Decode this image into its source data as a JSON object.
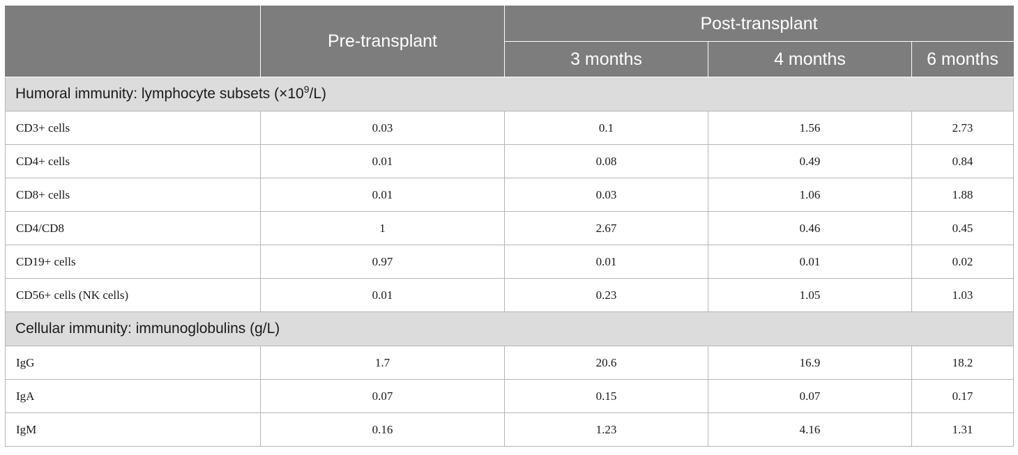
{
  "header": {
    "pre_transplant": "Pre-transplant",
    "post_transplant": "Post-transplant",
    "months": [
      "3 months",
      "4 months",
      "6 months"
    ]
  },
  "sections": [
    {
      "title_prefix": "Humoral immunity: lymphocyte subsets (×10",
      "title_superscript": "9",
      "title_suffix": "/L)",
      "rows": [
        {
          "label": "CD3+ cells",
          "values": [
            "0.03",
            "0.1",
            "1.56",
            "2.73"
          ]
        },
        {
          "label": "CD4+ cells",
          "values": [
            "0.01",
            "0.08",
            "0.49",
            "0.84"
          ]
        },
        {
          "label": "CD8+ cells",
          "values": [
            "0.01",
            "0.03",
            "1.06",
            "1.88"
          ]
        },
        {
          "label": "CD4/CD8",
          "values": [
            "1",
            "2.67",
            "0.46",
            "0.45"
          ]
        },
        {
          "label": "CD19+ cells",
          "values": [
            "0.97",
            "0.01",
            "0.01",
            "0.02"
          ]
        },
        {
          "label": "CD56+ cells (NK cells)",
          "values": [
            "0.01",
            "0.23",
            "1.05",
            "1.03"
          ]
        }
      ]
    },
    {
      "title_prefix": "Cellular immunity: immunoglobulins (g/L)",
      "title_superscript": "",
      "title_suffix": "",
      "rows": [
        {
          "label": "IgG",
          "values": [
            "1.7",
            "20.6",
            "16.9",
            "18.2"
          ]
        },
        {
          "label": "IgA",
          "values": [
            "0.07",
            "0.15",
            "0.07",
            "0.17"
          ]
        },
        {
          "label": "IgM",
          "values": [
            "0.16",
            "1.23",
            "4.16",
            "1.31"
          ]
        }
      ]
    }
  ],
  "colors": {
    "header_bg": "#7d7d7d",
    "section_bg": "#dcdcdc",
    "border": "#b5b5b5"
  }
}
